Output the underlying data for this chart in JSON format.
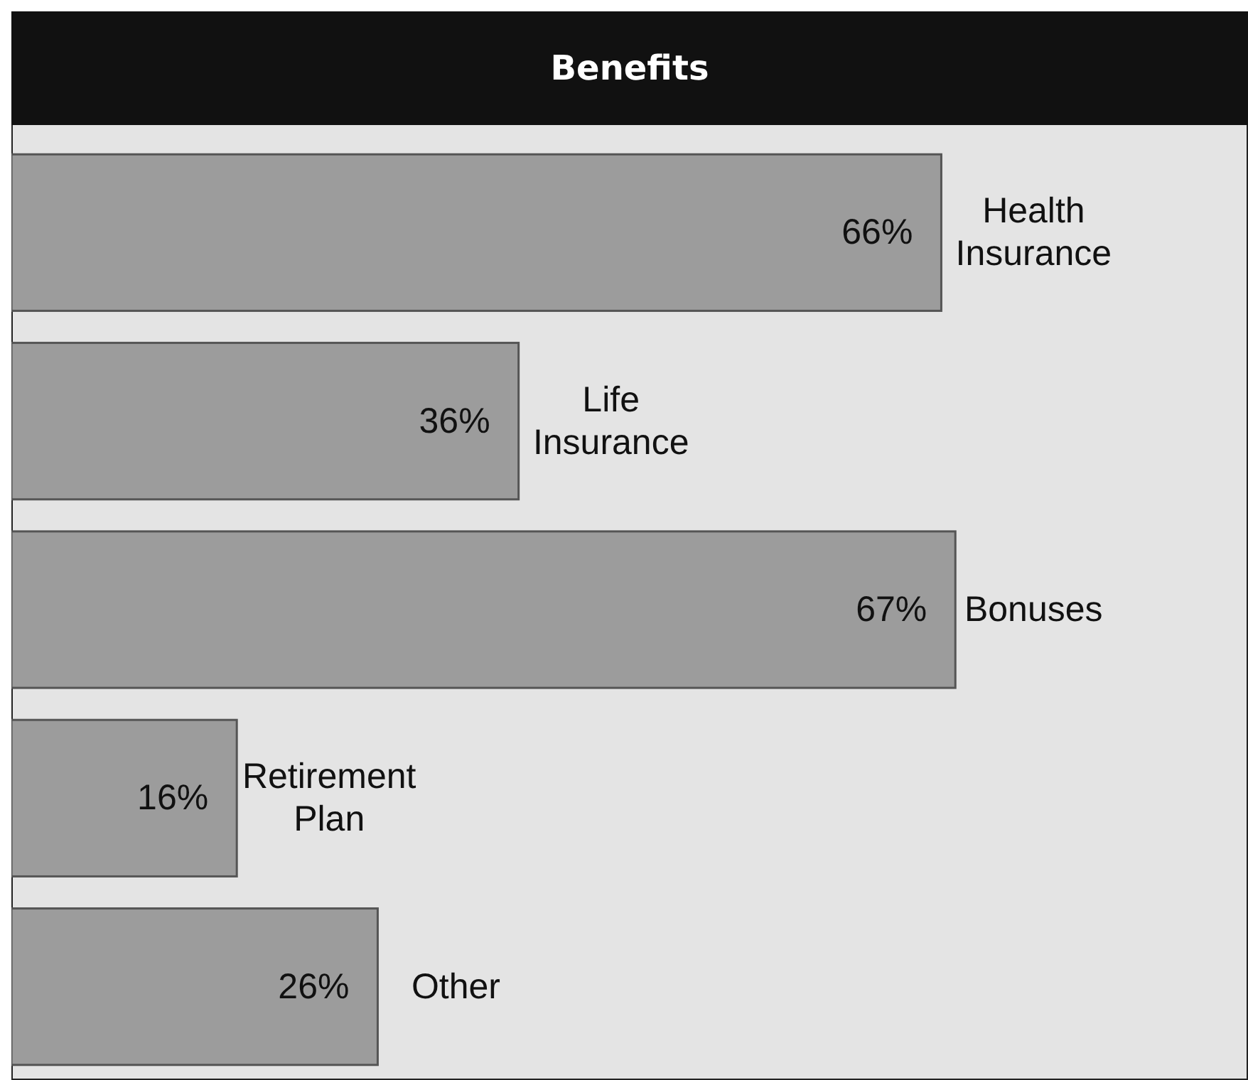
{
  "chart_data": {
    "type": "bar",
    "orientation": "horizontal",
    "title": "Benefits",
    "categories": [
      "Health Insurance",
      "Life Insurance",
      "Bonuses",
      "Retirement Plan",
      "Other"
    ],
    "values": [
      66,
      36,
      67,
      16,
      26
    ],
    "color": "#9c9c9c",
    "data_labels": true,
    "value_labels": [
      "66%",
      "36%",
      "67%",
      "16%",
      "26%"
    ]
  }
}
